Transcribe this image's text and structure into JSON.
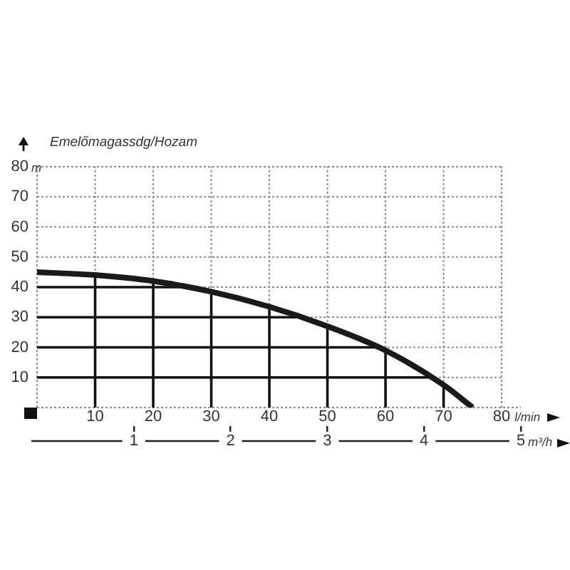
{
  "chart_data": {
    "type": "line",
    "title": "Emelőmagassdg/Hozam",
    "ylabel": "m",
    "xlabel": "l/min",
    "x2label": "m³/h",
    "x": [
      0,
      10,
      20,
      30,
      40,
      50,
      60,
      70,
      75
    ],
    "series": [
      {
        "color": "#1a1a1a",
        "values": [
          45,
          44,
          42,
          38.5,
          33.5,
          27,
          19,
          7.5,
          0
        ]
      }
    ],
    "xlim": [
      0,
      83.3
    ],
    "xticks": [
      10,
      20,
      30,
      40,
      50,
      60,
      70,
      80
    ],
    "x2lim": [
      0,
      5
    ],
    "x2ticks": [
      1,
      2,
      3,
      4,
      5
    ],
    "ylim": [
      0,
      80
    ],
    "yticks": [
      10,
      20,
      30,
      40,
      50,
      60,
      70,
      80
    ],
    "grid": true
  }
}
